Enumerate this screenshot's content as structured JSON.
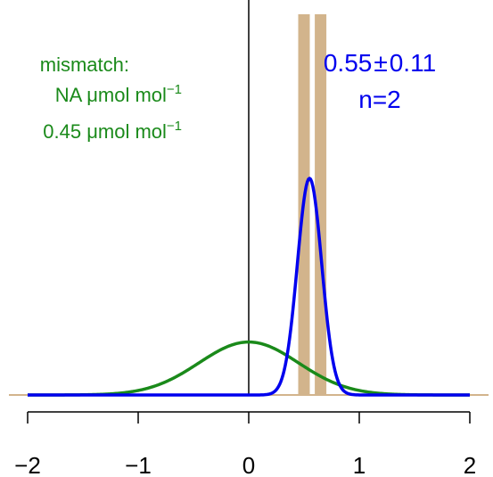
{
  "chart_data": {
    "type": "line",
    "title": "",
    "xlabel": "",
    "ylabel": "",
    "xlim": [
      -2,
      2
    ],
    "x_ticks": [
      -2,
      -1,
      0,
      1,
      2
    ],
    "x_tick_labels": [
      "−2",
      "−1",
      "0",
      "1",
      "2"
    ],
    "grid": false,
    "vertical_reference_line": 0,
    "measurements": [
      0.5,
      0.65
    ],
    "series": [
      {
        "name": "",
        "kind": "normal-density",
        "mean": 0.55,
        "sd": 0.11,
        "color": "#0000ee"
      },
      {
        "name": "",
        "kind": "normal-density",
        "mean": 0,
        "sd": 0.45,
        "color": "#1a8a1a"
      }
    ],
    "colors": {
      "measurement_band": "#d2b48c",
      "baseline": "#d2b48c",
      "axis": "#000000"
    }
  },
  "annotations": {
    "blue_line1_value": "0.55",
    "blue_line1_pm": "±",
    "blue_line1_unc": "0.11",
    "blue_line2": "n=2",
    "green_line1": "mismatch:",
    "green_line2_text": "NA ",
    "green_line2_unit": "μmol mol",
    "green_line2_sup": "−1",
    "green_line3_text": "0.45 ",
    "green_line3_unit": "μmol mol",
    "green_line3_sup": "−1"
  }
}
